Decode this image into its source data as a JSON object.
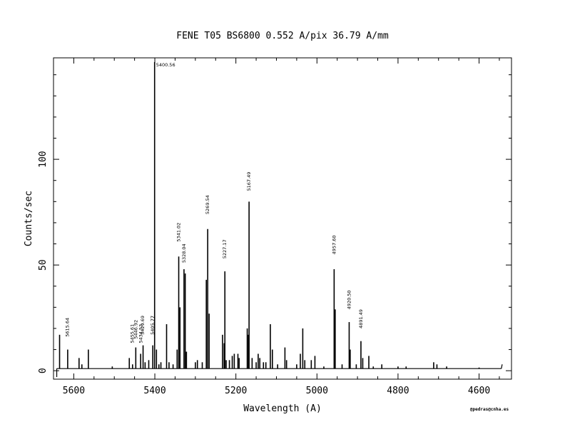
{
  "chart_data": {
    "type": "line",
    "title": "FENE  T05  BS6800  0.552 A/pix  36.79 A/mm",
    "xlabel": "Wavelength (A)",
    "ylabel": "Counts/sec",
    "credit": "@pedras@cnha.es",
    "xlim": [
      5650,
      4520
    ],
    "ylim": [
      -4,
      148
    ],
    "x_ticks": [
      5600,
      5400,
      5200,
      5000,
      4800,
      4600
    ],
    "y_ticks": [
      0,
      50,
      100
    ],
    "grid": false,
    "baseline": 1,
    "lines": [
      {
        "x": 5635,
        "y": 17
      },
      {
        "x": 5615,
        "y": 10
      },
      {
        "x": 5587,
        "y": 6
      },
      {
        "x": 5580,
        "y": 3
      },
      {
        "x": 5564,
        "y": 10
      },
      {
        "x": 5505,
        "y": 2
      },
      {
        "x": 5463,
        "y": 6
      },
      {
        "x": 5455,
        "y": 3
      },
      {
        "x": 5447,
        "y": 11
      },
      {
        "x": 5435,
        "y": 8
      },
      {
        "x": 5429,
        "y": 12
      },
      {
        "x": 5424,
        "y": 4
      },
      {
        "x": 5415,
        "y": 5
      },
      {
        "x": 5405,
        "y": 12
      },
      {
        "x": 5400.56,
        "y": 146
      },
      {
        "x": 5396,
        "y": 10
      },
      {
        "x": 5390,
        "y": 3
      },
      {
        "x": 5385,
        "y": 4
      },
      {
        "x": 5371,
        "y": 22
      },
      {
        "x": 5365,
        "y": 4
      },
      {
        "x": 5355,
        "y": 3
      },
      {
        "x": 5345,
        "y": 10
      },
      {
        "x": 5341.02,
        "y": 54
      },
      {
        "x": 5338,
        "y": 30
      },
      {
        "x": 5328.04,
        "y": 48
      },
      {
        "x": 5325,
        "y": 46
      },
      {
        "x": 5322,
        "y": 9
      },
      {
        "x": 5300,
        "y": 4
      },
      {
        "x": 5295,
        "y": 5
      },
      {
        "x": 5283,
        "y": 4
      },
      {
        "x": 5273,
        "y": 43
      },
      {
        "x": 5269.54,
        "y": 67
      },
      {
        "x": 5266,
        "y": 27
      },
      {
        "x": 5233,
        "y": 17
      },
      {
        "x": 5229,
        "y": 13
      },
      {
        "x": 5227.17,
        "y": 47
      },
      {
        "x": 5224,
        "y": 5
      },
      {
        "x": 5216,
        "y": 5
      },
      {
        "x": 5209,
        "y": 7
      },
      {
        "x": 5204,
        "y": 8
      },
      {
        "x": 5195,
        "y": 8
      },
      {
        "x": 5192,
        "y": 6
      },
      {
        "x": 5172,
        "y": 20
      },
      {
        "x": 5169,
        "y": 17
      },
      {
        "x": 5167.49,
        "y": 80
      },
      {
        "x": 5160,
        "y": 6
      },
      {
        "x": 5150,
        "y": 4
      },
      {
        "x": 5145,
        "y": 8
      },
      {
        "x": 5141,
        "y": 6
      },
      {
        "x": 5132,
        "y": 4
      },
      {
        "x": 5126,
        "y": 4
      },
      {
        "x": 5115,
        "y": 22
      },
      {
        "x": 5110,
        "y": 10
      },
      {
        "x": 5097,
        "y": 3
      },
      {
        "x": 5079,
        "y": 11
      },
      {
        "x": 5075,
        "y": 5
      },
      {
        "x": 5050,
        "y": 3
      },
      {
        "x": 5041,
        "y": 8
      },
      {
        "x": 5035,
        "y": 20
      },
      {
        "x": 5030,
        "y": 5
      },
      {
        "x": 5014,
        "y": 5
      },
      {
        "x": 5005,
        "y": 7
      },
      {
        "x": 4983,
        "y": 2
      },
      {
        "x": 4957.6,
        "y": 48
      },
      {
        "x": 4955,
        "y": 29
      },
      {
        "x": 4938,
        "y": 3
      },
      {
        "x": 4920.5,
        "y": 23
      },
      {
        "x": 4918,
        "y": 10
      },
      {
        "x": 4903,
        "y": 3
      },
      {
        "x": 4891.49,
        "y": 14
      },
      {
        "x": 4887,
        "y": 6
      },
      {
        "x": 4872,
        "y": 7
      },
      {
        "x": 4861,
        "y": 2
      },
      {
        "x": 4840,
        "y": 3
      },
      {
        "x": 4800,
        "y": 2
      },
      {
        "x": 4780,
        "y": 2
      },
      {
        "x": 4712,
        "y": 4
      },
      {
        "x": 4704,
        "y": 3
      },
      {
        "x": 4680,
        "y": 2
      },
      {
        "x": 4600,
        "y": 1.5
      }
    ],
    "annotations": [
      {
        "text": "5615.64",
        "x": 5615.64,
        "y": 16
      },
      {
        "text": "5455.61",
        "x": 5455.61,
        "y": 13
      },
      {
        "text": "5446.92",
        "x": 5446.92,
        "y": 15
      },
      {
        "text": "5434.53",
        "x": 5434.53,
        "y": 13
      },
      {
        "text": "5429.69",
        "x": 5429.69,
        "y": 17
      },
      {
        "text": "5405.77",
        "x": 5405.77,
        "y": 17
      },
      {
        "text": "5400.56",
        "x": 5400.56,
        "y": 146
      },
      {
        "text": "5341.02",
        "x": 5341.02,
        "y": 61
      },
      {
        "text": "5328.04",
        "x": 5328.04,
        "y": 51
      },
      {
        "text": "5269.54",
        "x": 5269.54,
        "y": 74
      },
      {
        "text": "5227.17",
        "x": 5227.17,
        "y": 53
      },
      {
        "text": "5167.49",
        "x": 5167.49,
        "y": 85
      },
      {
        "text": "4957.60",
        "x": 4957.6,
        "y": 55
      },
      {
        "text": "4920.50",
        "x": 4920.5,
        "y": 29
      },
      {
        "text": "4891.49",
        "x": 4891.49,
        "y": 20
      }
    ]
  }
}
